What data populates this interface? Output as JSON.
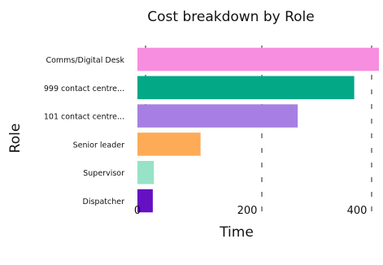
{
  "chart_data": {
    "type": "bar",
    "orientation": "horizontal",
    "title": "Cost breakdown by Role",
    "xlabel": "Time",
    "ylabel": "Role",
    "categories": [
      "Comms/Digital Desk",
      "999 contact centre...",
      "101 contact centre...",
      "Senior leader",
      "Supervisor",
      "Dispatcher"
    ],
    "values": [
      440,
      395,
      292,
      115,
      30,
      28
    ],
    "bar_colors": [
      "#f78ee0",
      "#03a887",
      "#a77fe2",
      "#fdab57",
      "#98e2c7",
      "#6610c4"
    ],
    "xticks": [
      0,
      200,
      400
    ],
    "xlim": [
      0,
      440
    ],
    "grid": "vertical dashed",
    "legend": "none"
  }
}
